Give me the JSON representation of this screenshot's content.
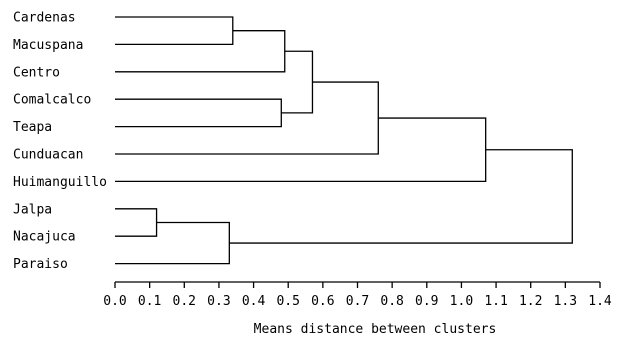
{
  "chart_data": {
    "type": "dendrogram",
    "title": "",
    "xlabel": "Means distance between clusters",
    "xlim": [
      0.0,
      1.4
    ],
    "x_ticks": [
      "0.0",
      "0.1",
      "0.2",
      "0.3",
      "0.4",
      "0.5",
      "0.6",
      "0.7",
      "0.8",
      "0.9",
      "1.0",
      "1.1",
      "1.2",
      "1.3",
      "1.4"
    ],
    "leaves": [
      "Cardenas",
      "Macuspana",
      "Centro",
      "Comalcalco",
      "Teapa",
      "Cunduacan",
      "Huimanguillo",
      "Jalpa",
      "Nacajuca",
      "Paraiso"
    ],
    "merges": [
      {
        "id": "m1",
        "left": "Jalpa",
        "right": "Nacajuca",
        "height": 0.12
      },
      {
        "id": "m2",
        "left": "m1",
        "right": "Paraiso",
        "height": 0.33
      },
      {
        "id": "m3",
        "left": "Cardenas",
        "right": "Macuspana",
        "height": 0.34
      },
      {
        "id": "m4",
        "left": "Comalcalco",
        "right": "Teapa",
        "height": 0.48
      },
      {
        "id": "m5",
        "left": "m3",
        "right": "Centro",
        "height": 0.49
      },
      {
        "id": "m6",
        "left": "m5",
        "right": "m4",
        "height": 0.57
      },
      {
        "id": "m7",
        "left": "m6",
        "right": "Cunduacan",
        "height": 0.76
      },
      {
        "id": "m8",
        "left": "m7",
        "right": "Huimanguillo",
        "height": 1.07
      },
      {
        "id": "m9",
        "left": "m8",
        "right": "m2",
        "height": 1.32
      }
    ]
  }
}
